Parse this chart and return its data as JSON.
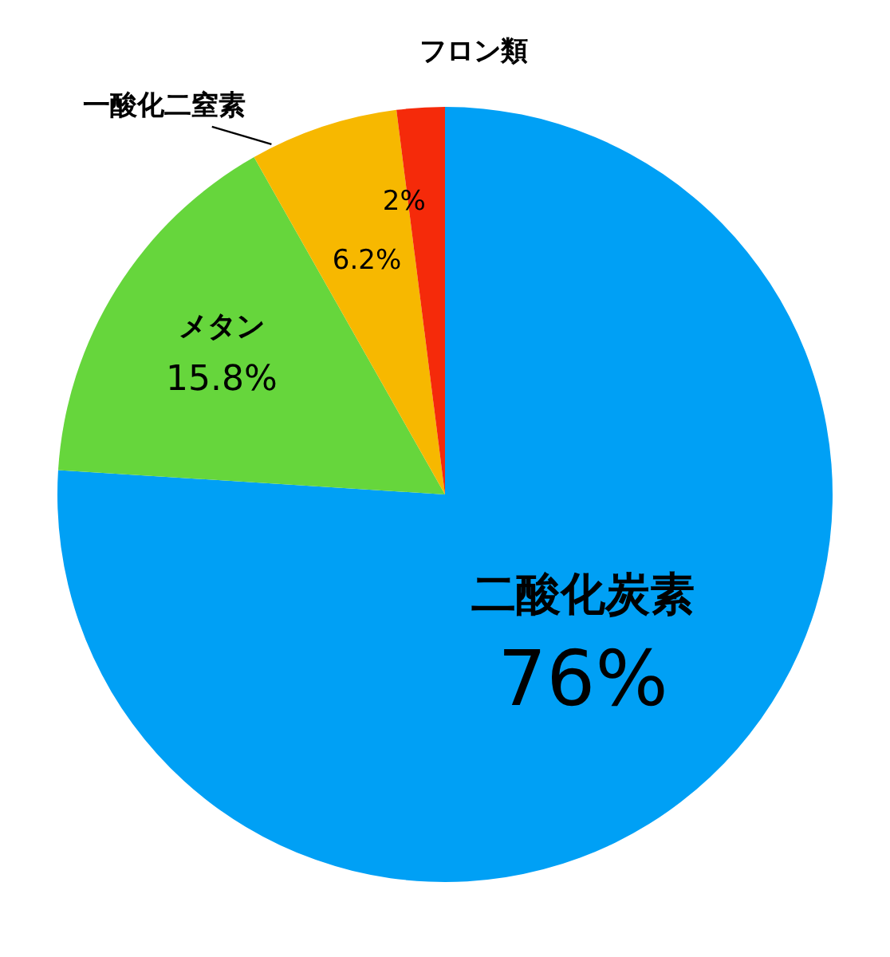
{
  "chart_data": {
    "type": "pie",
    "categories": [
      "二酸化炭素",
      "メタン",
      "一酸化二窒素",
      "フロン類"
    ],
    "values": [
      76,
      15.8,
      6.2,
      2
    ],
    "colors": [
      "#00a0f5",
      "#66d63c",
      "#f7b800",
      "#f52a0a"
    ],
    "value_labels": [
      "76%",
      "15.8%",
      "6.2%",
      "2%"
    ]
  }
}
